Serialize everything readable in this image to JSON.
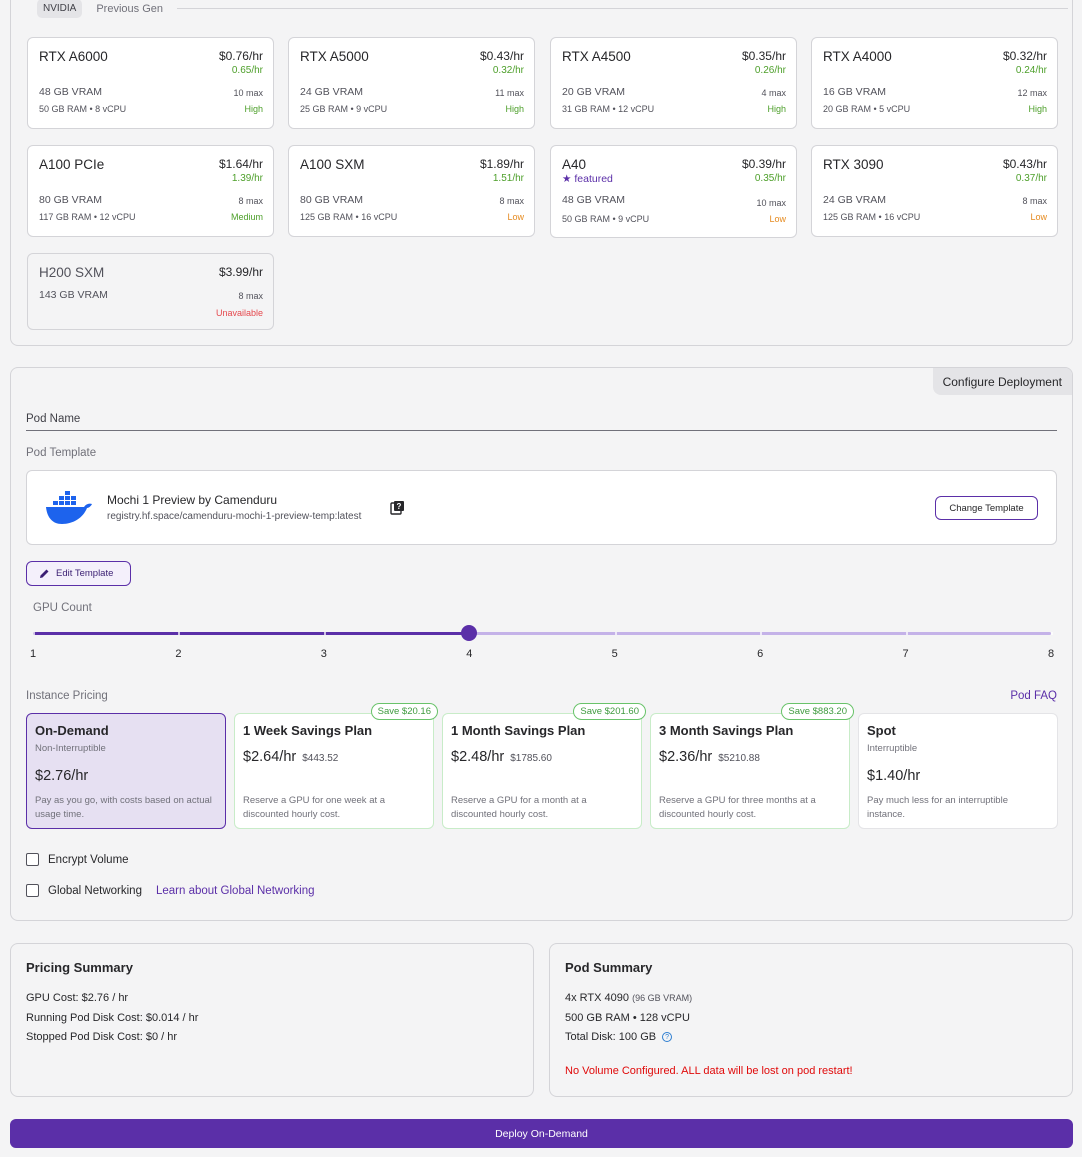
{
  "vendor": {
    "active": "NVIDIA",
    "previous": "Previous Gen"
  },
  "gpus": [
    {
      "name": "RTX A6000",
      "price": "$0.76/hr",
      "spot": "0.65/hr",
      "vram": "48 GB VRAM",
      "max": "10 max",
      "ram": "50 GB RAM",
      "vcpu": "8 vCPU",
      "availability": "High"
    },
    {
      "name": "RTX A5000",
      "price": "$0.43/hr",
      "spot": "0.32/hr",
      "vram": "24 GB VRAM",
      "max": "11 max",
      "ram": "25 GB RAM",
      "vcpu": "9 vCPU",
      "availability": "High"
    },
    {
      "name": "RTX A4500",
      "price": "$0.35/hr",
      "spot": "0.26/hr",
      "vram": "20 GB VRAM",
      "max": "4 max",
      "ram": "31 GB RAM",
      "vcpu": "12 vCPU",
      "availability": "High"
    },
    {
      "name": "RTX A4000",
      "price": "$0.32/hr",
      "spot": "0.24/hr",
      "vram": "16 GB VRAM",
      "max": "12 max",
      "ram": "20 GB RAM",
      "vcpu": "5 vCPU",
      "availability": "High"
    },
    {
      "name": "A100 PCIe",
      "price": "$1.64/hr",
      "spot": "1.39/hr",
      "vram": "80 GB VRAM",
      "max": "8 max",
      "ram": "117 GB RAM",
      "vcpu": "12 vCPU",
      "availability": "Medium"
    },
    {
      "name": "A100 SXM",
      "price": "$1.89/hr",
      "spot": "1.51/hr",
      "vram": "80 GB VRAM",
      "max": "8 max",
      "ram": "125 GB RAM",
      "vcpu": "16 vCPU",
      "availability": "Low"
    },
    {
      "name": "A40",
      "featured": "featured",
      "price": "$0.39/hr",
      "spot": "0.35/hr",
      "vram": "48 GB VRAM",
      "max": "10 max",
      "ram": "50 GB RAM",
      "vcpu": "9 vCPU",
      "availability": "Low"
    },
    {
      "name": "RTX 3090",
      "price": "$0.43/hr",
      "spot": "0.37/hr",
      "vram": "24 GB VRAM",
      "max": "8 max",
      "ram": "125 GB RAM",
      "vcpu": "16 vCPU",
      "availability": "Low"
    },
    {
      "name": "H200 SXM",
      "price": "$3.99/hr",
      "vram": "143 GB VRAM",
      "max": "8 max",
      "availability": "Unavailable"
    }
  ],
  "config": {
    "tab_label": "Configure Deployment",
    "pod_name_label": "Pod Name",
    "pod_template_label": "Pod Template",
    "template": {
      "name": "Mochi 1 Preview by Camenduru",
      "image": "registry.hf.space/camenduru-mochi-1-preview-temp:latest",
      "change_label": "Change Template"
    },
    "edit_template_label": "Edit Template",
    "gpu_count_label": "GPU Count",
    "gpu_count": {
      "min": 1,
      "max": 8,
      "value": 4,
      "ticks": [
        "1",
        "2",
        "3",
        "4",
        "5",
        "6",
        "7",
        "8"
      ]
    },
    "instance_pricing_label": "Instance Pricing",
    "pod_faq_label": "Pod FAQ",
    "plans": [
      {
        "title": "On-Demand",
        "subtitle": "Non-Interruptible",
        "price": "$2.76/hr",
        "description": "Pay as you go, with costs based on actual usage time.",
        "selected": true
      },
      {
        "title": "1 Week Savings Plan",
        "badge": "Save $20.16",
        "rate": "$2.64/hr",
        "total": "$443.52",
        "description": "Reserve a GPU for one week at a discounted hourly cost."
      },
      {
        "title": "1 Month Savings Plan",
        "badge": "Save $201.60",
        "rate": "$2.48/hr",
        "total": "$1785.60",
        "description": "Reserve a GPU for a month at a discounted hourly cost."
      },
      {
        "title": "3 Month Savings Plan",
        "badge": "Save $883.20",
        "rate": "$2.36/hr",
        "total": "$5210.88",
        "description": "Reserve a GPU for three months at a discounted hourly cost."
      },
      {
        "title": "Spot",
        "subtitle": "Interruptible",
        "price": "$1.40/hr",
        "description": "Pay much less for an interruptible instance."
      }
    ],
    "encrypt_volume_label": "Encrypt Volume",
    "global_networking_label": "Global Networking",
    "learn_global_networking": "Learn about Global Networking"
  },
  "pricing_summary": {
    "title": "Pricing Summary",
    "gpu_cost": "GPU Cost: $2.76 / hr",
    "running_disk": "Running Pod Disk Cost: $0.014 / hr",
    "stopped_disk": "Stopped Pod Disk Cost: $0 / hr"
  },
  "pod_summary": {
    "title": "Pod Summary",
    "gpus": "4x RTX 4090",
    "gpus_vram": "(96 GB VRAM)",
    "ram_cpu": "500 GB RAM • 128 vCPU",
    "disk": "Total Disk: 100 GB",
    "warning": "No Volume Configured. ALL data will be lost on pod restart!"
  },
  "deploy_label": "Deploy On-Demand",
  "colors": {
    "accent": "#5b2fa8",
    "spot_green": "#4d9f2a",
    "low_orange": "#e58a1f",
    "unavailable_red": "#e5484d",
    "warning_red": "#e00a0a"
  }
}
